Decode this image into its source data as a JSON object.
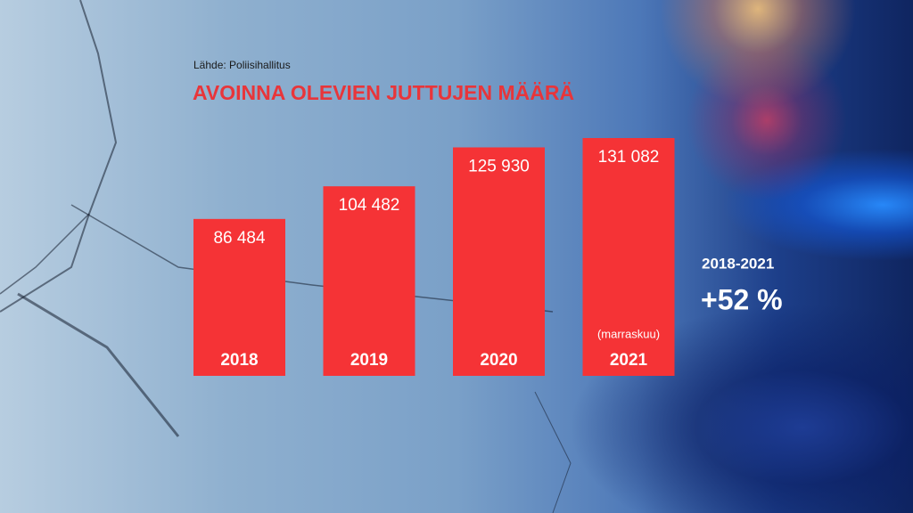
{
  "chart_data": {
    "type": "bar",
    "source": "Lähde: Poliisihallitus",
    "title": "AVOINNA OLEVIEN JUTTUJEN MÄÄRÄ",
    "categories": [
      "2018",
      "2019",
      "2020",
      "2021"
    ],
    "values": [
      86484,
      104482,
      125930,
      131082
    ],
    "value_labels": [
      "86 484",
      "104 482",
      "125 930",
      "131 082"
    ],
    "category_notes": [
      null,
      null,
      null,
      "(marraskuu)"
    ],
    "color": "#f53336",
    "period": "2018-2021",
    "change": "+52 %"
  }
}
